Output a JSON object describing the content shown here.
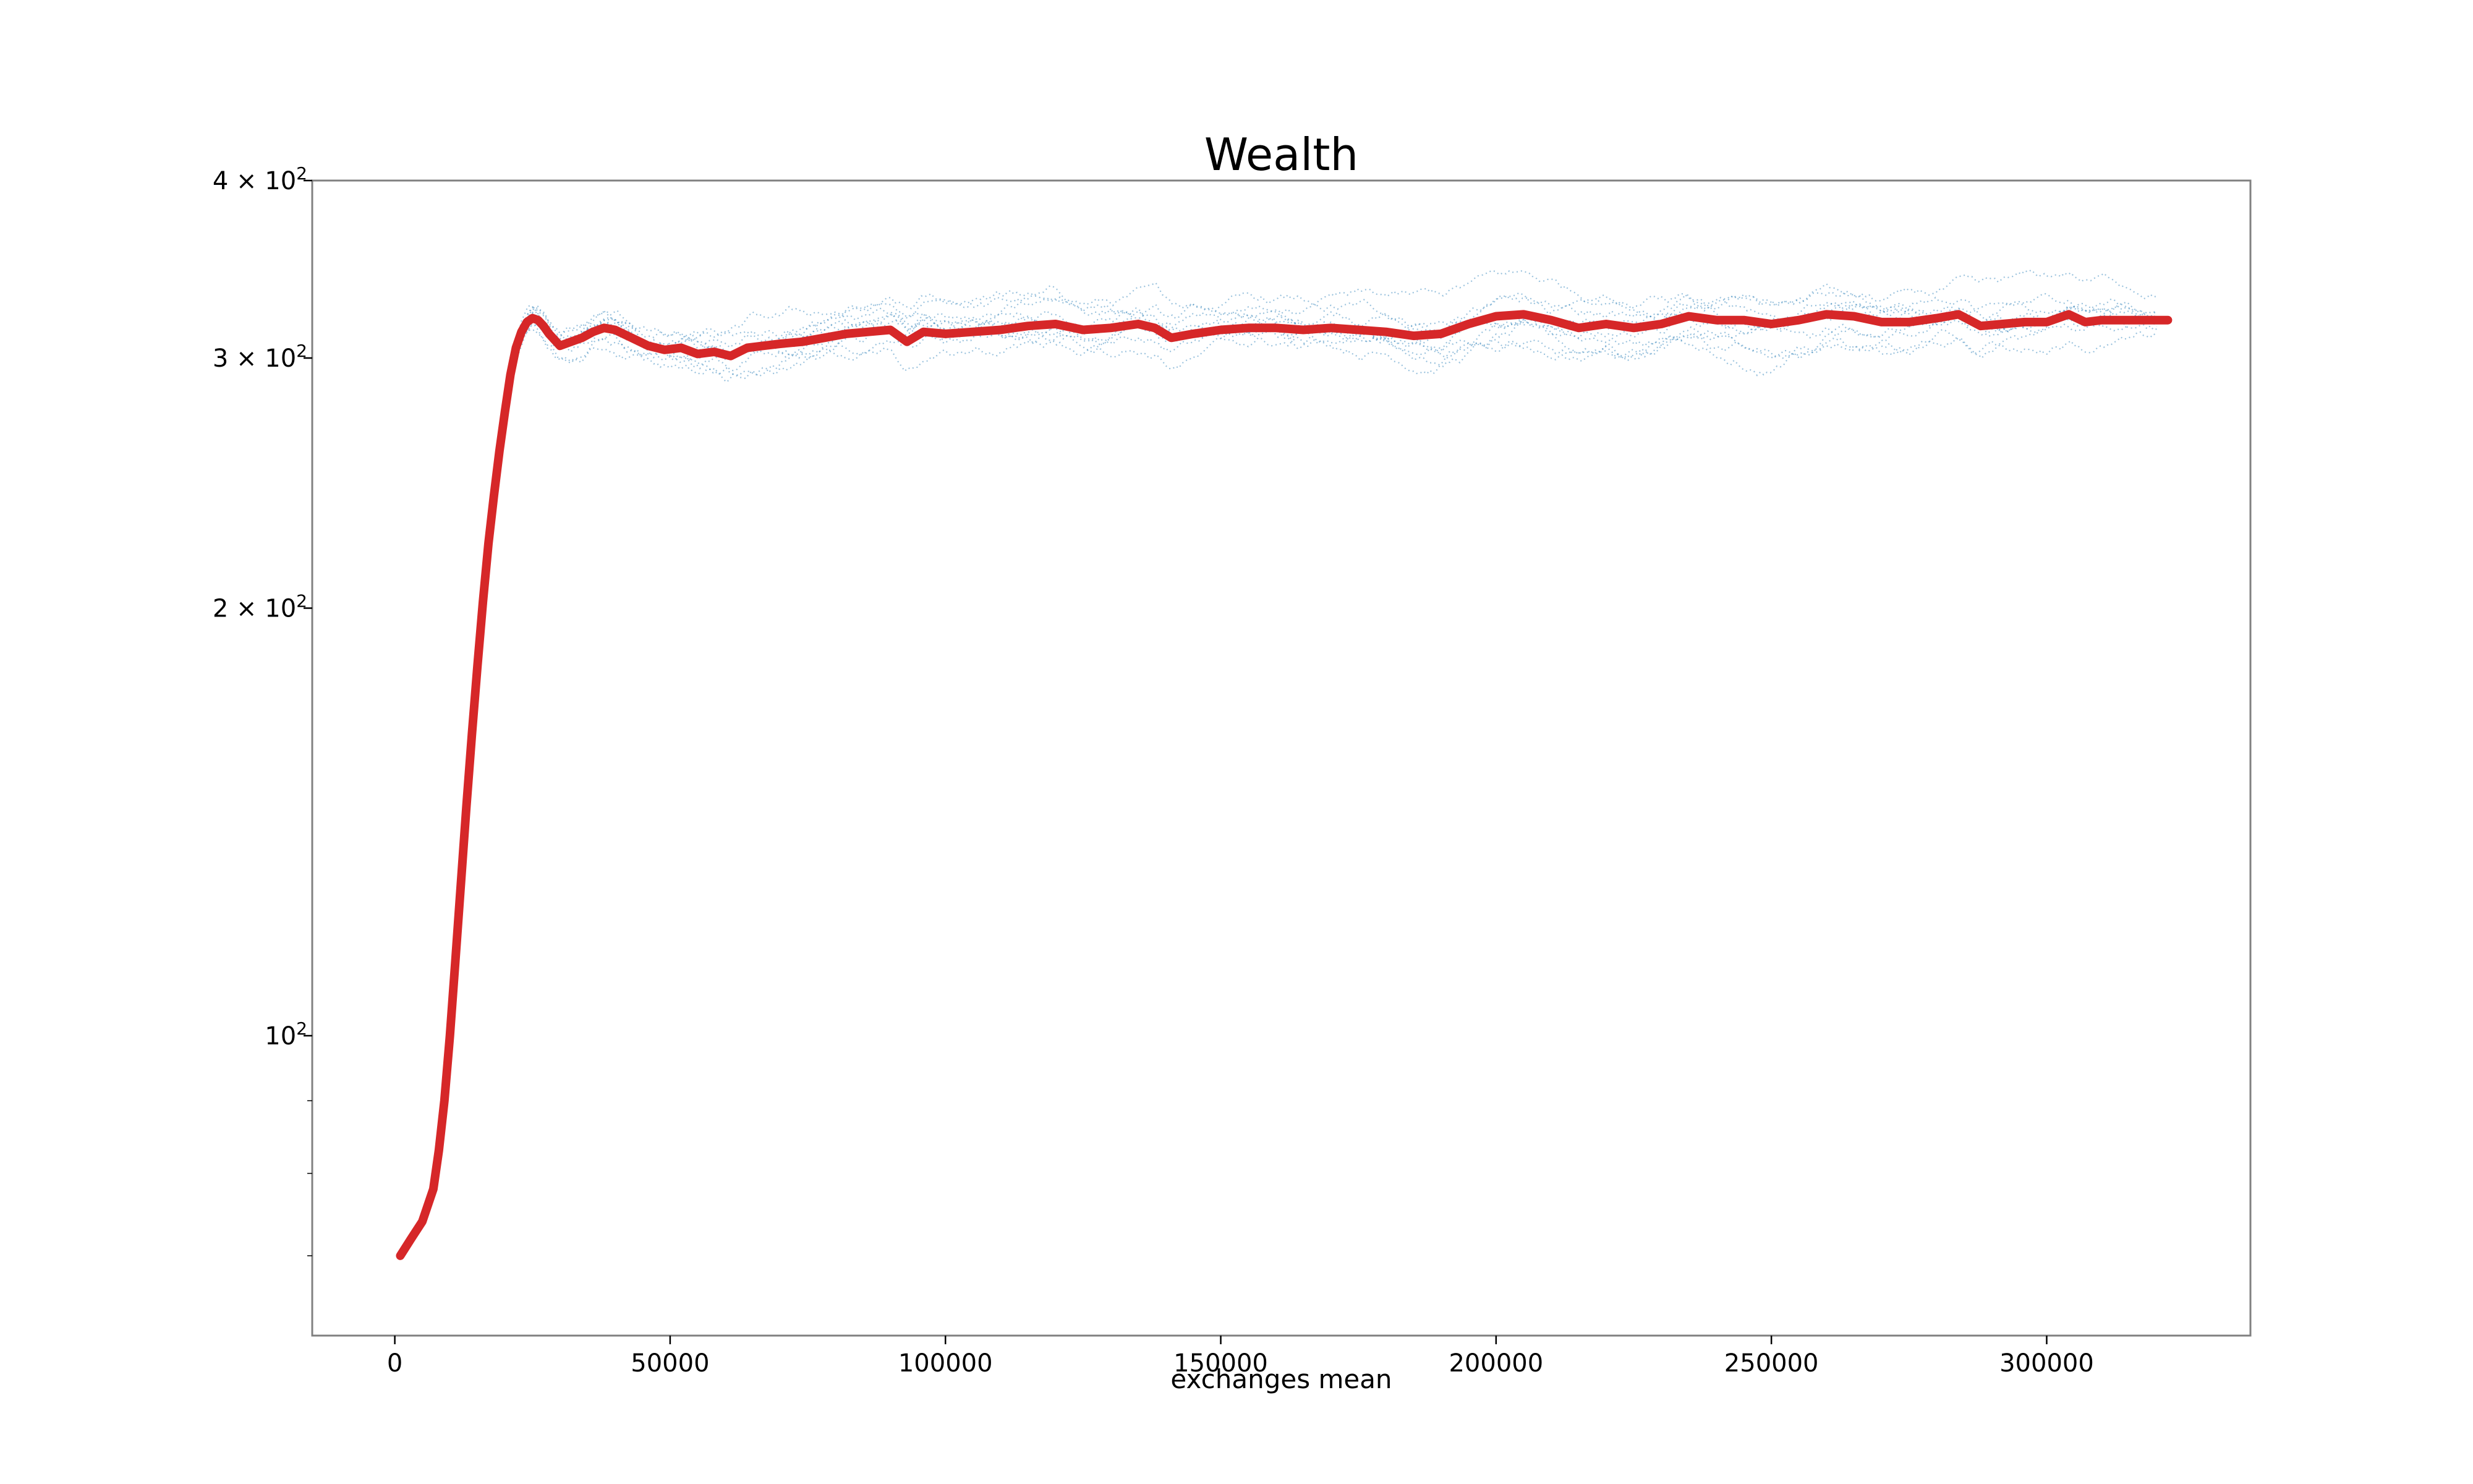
{
  "chart_data": {
    "type": "line",
    "title": "Wealth",
    "xlabel": "exchanges mean",
    "ylabel": "",
    "xlim": [
      -15000,
      337000
    ],
    "ylim": [
      61.5,
      400
    ],
    "yscale": "log",
    "grid": false,
    "x_ticks": [
      {
        "value": 0,
        "label": "0"
      },
      {
        "value": 50000,
        "label": "50000"
      },
      {
        "value": 100000,
        "label": "100000"
      },
      {
        "value": 150000,
        "label": "150000"
      },
      {
        "value": 200000,
        "label": "200000"
      },
      {
        "value": 250000,
        "label": "250000"
      },
      {
        "value": 300000,
        "label": "300000"
      }
    ],
    "y_ticks": [
      {
        "value": 100,
        "base": "10",
        "exp": "2",
        "mult": ""
      },
      {
        "value": 200,
        "base": "10",
        "exp": "2",
        "mult": "2 × "
      },
      {
        "value": 300,
        "base": "10",
        "exp": "2",
        "mult": "3 × "
      },
      {
        "value": 400,
        "base": "10",
        "exp": "2",
        "mult": "4 × "
      }
    ],
    "y_minor_ticks": [
      70,
      80,
      90
    ],
    "colors": {
      "mean": "#d62728",
      "samples": "#1f77b4",
      "frame": "#808080"
    },
    "mean_series": {
      "name": "",
      "x": [
        1000,
        3000,
        5000,
        7000,
        8000,
        9000,
        10000,
        11000,
        12000,
        13000,
        14000,
        15000,
        16000,
        17000,
        18000,
        19000,
        20000,
        21000,
        22000,
        23000,
        24000,
        25000,
        26000,
        27000,
        28000,
        30000,
        32000,
        34000,
        36000,
        38000,
        40000,
        43000,
        46000,
        49000,
        52000,
        55000,
        58000,
        61000,
        64000,
        67000,
        70000,
        74000,
        78000,
        82000,
        86000,
        90000,
        93000,
        96000,
        100000,
        105000,
        110000,
        115000,
        120000,
        125000,
        130000,
        135000,
        138000,
        141000,
        145000,
        150000,
        155000,
        160000,
        165000,
        170000,
        175000,
        180000,
        185000,
        190000,
        195000,
        200000,
        205000,
        210000,
        215000,
        220000,
        225000,
        230000,
        235000,
        240000,
        245000,
        250000,
        255000,
        260000,
        265000,
        270000,
        275000,
        280000,
        284000,
        288000,
        292000,
        296000,
        300000,
        304000,
        307000,
        310000,
        315000,
        320000,
        322000
      ],
      "values": [
        70,
        72,
        74,
        78,
        83,
        90,
        100,
        113,
        128,
        145,
        163,
        182,
        202,
        222,
        240,
        258,
        275,
        292,
        305,
        313,
        318,
        320,
        319,
        316,
        312,
        306,
        308,
        310,
        313,
        315,
        314,
        310,
        306,
        304,
        305,
        302,
        303,
        301,
        305,
        306,
        307,
        308,
        310,
        312,
        313,
        314,
        308,
        313,
        312,
        313,
        314,
        316,
        317,
        314,
        315,
        317,
        315,
        310,
        312,
        314,
        315,
        315,
        314,
        315,
        314,
        313,
        311,
        312,
        317,
        321,
        322,
        319,
        315,
        317,
        315,
        317,
        321,
        319,
        319,
        317,
        319,
        322,
        321,
        318,
        318,
        320,
        322,
        316,
        317,
        318,
        318,
        322,
        318,
        319,
        319,
        319,
        319
      ]
    },
    "sample_runs": {
      "count": 10,
      "x_start": 20000,
      "x_end": 320000,
      "value_range": [
        272,
        372
      ]
    }
  }
}
